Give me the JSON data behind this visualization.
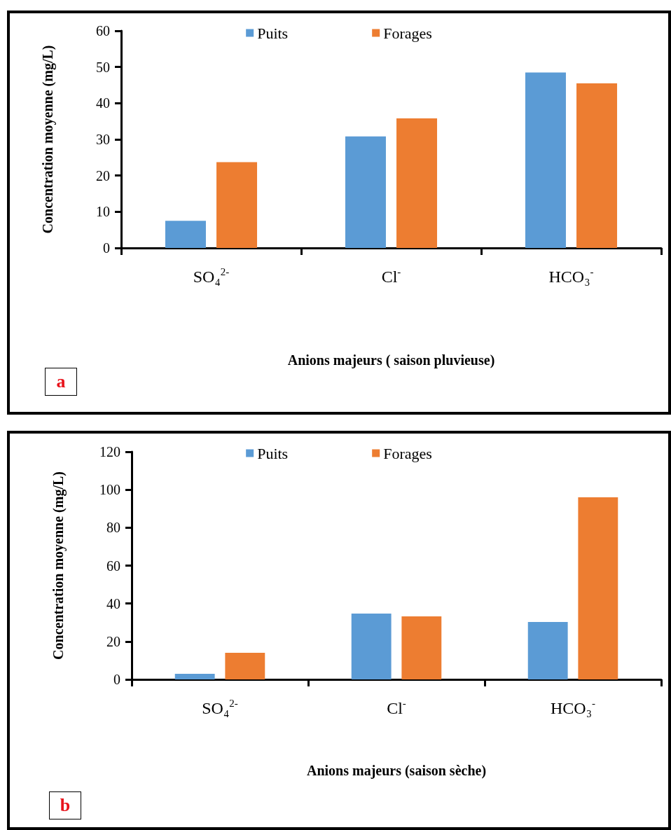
{
  "chart_data": [
    {
      "type": "bar",
      "categories": [
        "SO₄$^{2-}$",
        "Cl$^{-}$",
        "HCO₃$^{-}$"
      ],
      "series": [
        {
          "name": "Puits",
          "color": "#5b9bd5",
          "values": [
            7.5,
            30.8,
            48.5
          ]
        },
        {
          "name": "Forages",
          "color": "#ed7d31",
          "values": [
            23.7,
            35.8,
            45.5
          ]
        }
      ],
      "ylim": [
        0,
        60
      ],
      "yticks": [
        0,
        10,
        20,
        30,
        40,
        50,
        60
      ],
      "xlabel": "Anions majeurs ( saison pluvieuse)",
      "ylabel": "Concentration moyenne (mg/L)",
      "annotations": [
        "a"
      ],
      "legend": "top",
      "grid": false
    },
    {
      "type": "bar",
      "categories": [
        "SO₄$^{2-}$",
        "Cl$^{-}$",
        "HCO₃$^{-}$"
      ],
      "series": [
        {
          "name": "Puits",
          "color": "#5b9bd5",
          "values": [
            3,
            34.7,
            30.3
          ]
        },
        {
          "name": "Forages",
          "color": "#ed7d31",
          "values": [
            14,
            33.2,
            96
          ]
        }
      ],
      "ylim": [
        0,
        120
      ],
      "yticks": [
        0,
        20,
        40,
        60,
        80,
        100,
        120
      ],
      "xlabel": "Anions majeurs (saison sèche)",
      "ylabel": "Concentration moyenne (mg/L)",
      "annotations": [
        "b"
      ],
      "legend": "top",
      "grid": false
    }
  ]
}
